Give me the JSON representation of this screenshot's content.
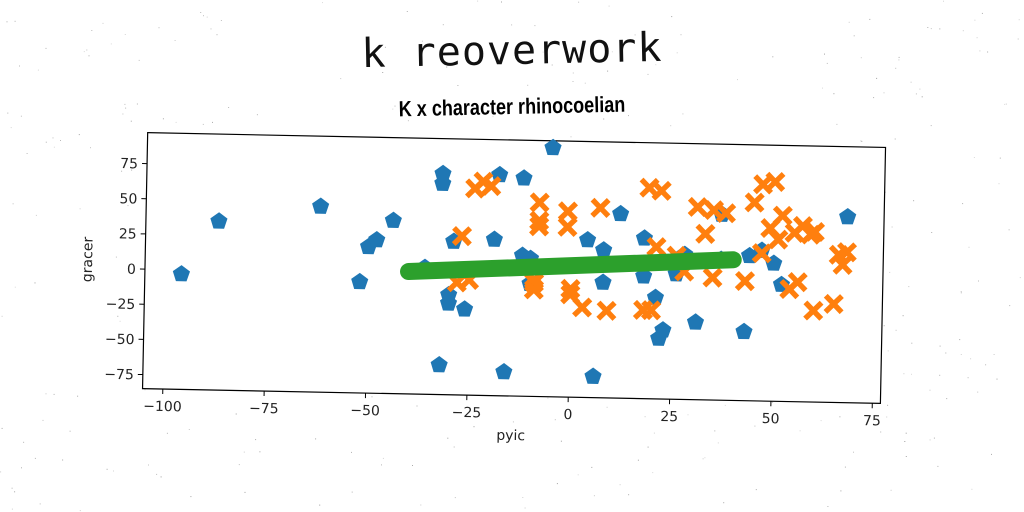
{
  "page": {
    "supertitle": "k reoverwork"
  },
  "chart_data": {
    "type": "scatter",
    "title": "K x character rhinocoelian",
    "xlabel": "pyic",
    "ylabel": "gracer",
    "xlim": [
      -105,
      77
    ],
    "ylim": [
      -85,
      97
    ],
    "xticks": [
      -100,
      -75,
      -50,
      -25,
      0,
      25,
      50,
      75
    ],
    "yticks": [
      -75,
      -50,
      -25,
      0,
      25,
      50,
      75
    ],
    "grid": false,
    "series": [
      {
        "marker": "pentagon",
        "color": "#1f77b4",
        "points": [
          [
            -96,
            -3
          ],
          [
            -87,
            35
          ],
          [
            -62,
            47
          ],
          [
            -52,
            -6
          ],
          [
            -50,
            19
          ],
          [
            -48,
            24
          ],
          [
            -44,
            38
          ],
          [
            -36,
            5
          ],
          [
            -32,
            -64
          ],
          [
            -32,
            72
          ],
          [
            -32,
            65
          ],
          [
            -30,
            -14
          ],
          [
            -30,
            -20
          ],
          [
            -29,
            24
          ],
          [
            -26,
            -24
          ],
          [
            -18,
            72
          ],
          [
            -19,
            26
          ],
          [
            -16,
            -68
          ],
          [
            -12,
            70
          ],
          [
            -12,
            15
          ],
          [
            -10,
            13
          ],
          [
            -5,
            92
          ],
          [
            -10,
            -5
          ],
          [
            4,
            27
          ],
          [
            6,
            -70
          ],
          [
            8,
            20
          ],
          [
            8,
            -3
          ],
          [
            12,
            46
          ],
          [
            18,
            29
          ],
          [
            18,
            2
          ],
          [
            21,
            -13
          ],
          [
            22,
            -42
          ],
          [
            23,
            -36
          ],
          [
            26,
            4
          ],
          [
            28,
            18
          ],
          [
            31,
            -30
          ],
          [
            37,
            47
          ],
          [
            37,
            15
          ],
          [
            43,
            -36
          ],
          [
            44,
            18
          ],
          [
            47,
            22
          ],
          [
            50,
            13
          ],
          [
            52,
            -2
          ],
          [
            68,
            47
          ]
        ]
      },
      {
        "marker": "x",
        "color": "#ff7f0e",
        "points": [
          [
            -28,
            -5
          ],
          [
            -27,
            28
          ],
          [
            -25,
            -3
          ],
          [
            -24,
            62
          ],
          [
            -22,
            67
          ],
          [
            -20,
            64
          ],
          [
            -9,
            -2
          ],
          [
            -9,
            -4
          ],
          [
            -9,
            -9
          ],
          [
            -8,
            53
          ],
          [
            -8,
            40
          ],
          [
            -8,
            36
          ],
          [
            -1,
            47
          ],
          [
            -1,
            36
          ],
          [
            0,
            -8
          ],
          [
            0,
            -12
          ],
          [
            3,
            -21
          ],
          [
            7,
            50
          ],
          [
            9,
            -23
          ],
          [
            18,
            -22
          ],
          [
            19,
            65
          ],
          [
            20,
            -22
          ],
          [
            21,
            23
          ],
          [
            22,
            63
          ],
          [
            26,
            17
          ],
          [
            28,
            6
          ],
          [
            31,
            52
          ],
          [
            33,
            33
          ],
          [
            35,
            50
          ],
          [
            38,
            48
          ],
          [
            35,
            2
          ],
          [
            43,
            0
          ],
          [
            45,
            56
          ],
          [
            47,
            20
          ],
          [
            47,
            69
          ],
          [
            50,
            71
          ],
          [
            49,
            38
          ],
          [
            51,
            30
          ],
          [
            52,
            47
          ],
          [
            54,
            -5
          ],
          [
            56,
            0
          ],
          [
            55,
            35
          ],
          [
            57,
            40
          ],
          [
            59,
            34
          ],
          [
            60,
            36
          ],
          [
            60,
            -20
          ],
          [
            65,
            -15
          ],
          [
            66,
            20
          ],
          [
            67,
            13
          ],
          [
            68,
            22
          ]
        ]
      },
      {
        "marker": "line",
        "color": "#2ca02c",
        "points": [
          [
            -40,
            2
          ],
          [
            40,
            15
          ]
        ]
      }
    ]
  }
}
